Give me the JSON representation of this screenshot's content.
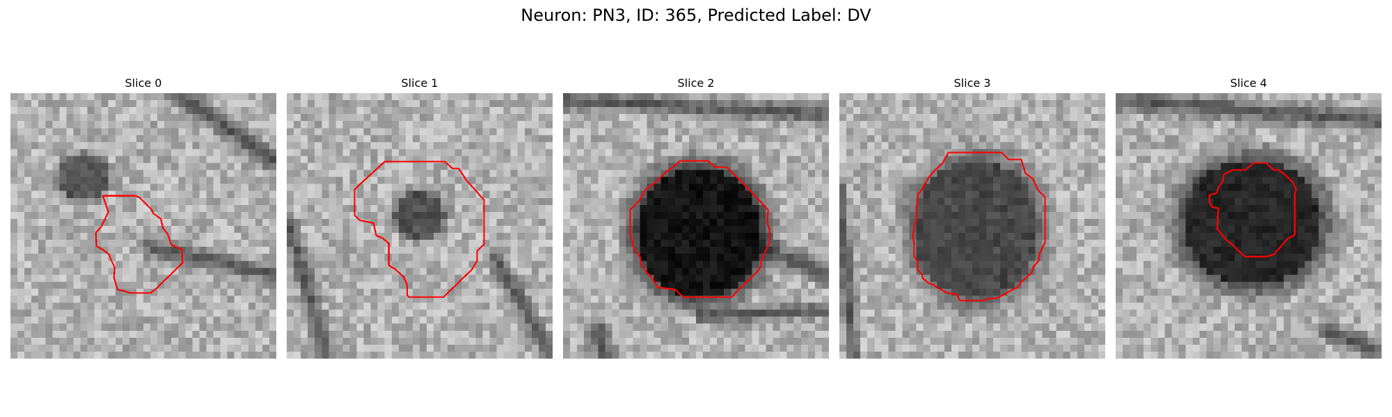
{
  "figure": {
    "title": "Neuron: PN3, ID: 365, Predicted Label: DV"
  },
  "panels": [
    {
      "title": "Slice 0",
      "image": "grayscale microscopy slice",
      "contour_color": "#ff0000",
      "blob": {
        "cx": 10.5,
        "cy": 12.0,
        "rx": 3.6,
        "ry": 3.1,
        "dark": 0.55
      },
      "streaks": [
        {
          "x1": 24,
          "y1": 0,
          "x2": 38,
          "y2": 10,
          "w": 2.2
        },
        {
          "x1": 20,
          "y1": 22,
          "x2": 38,
          "y2": 26,
          "w": 2.0
        }
      ]
    },
    {
      "title": "Slice 1",
      "image": "grayscale microscopy slice",
      "contour_color": "#ff0000",
      "blob": {
        "cx": 19.0,
        "cy": 17.5,
        "rx": 3.6,
        "ry": 3.3,
        "dark": 0.6
      },
      "streaks": [
        {
          "x1": 0,
          "y1": 18,
          "x2": 6,
          "y2": 38,
          "w": 1.8
        },
        {
          "x1": 30,
          "y1": 24,
          "x2": 38,
          "y2": 38,
          "w": 1.8
        }
      ]
    },
    {
      "title": "Slice 2",
      "image": "grayscale microscopy slice",
      "contour_color": "#ff0000",
      "blob": {
        "cx": 19.5,
        "cy": 20.0,
        "rx": 9.0,
        "ry": 9.3,
        "dark": 0.97
      },
      "streaks": [
        {
          "x1": 0,
          "y1": 1,
          "x2": 38,
          "y2": 3,
          "w": 2.0
        },
        {
          "x1": 28,
          "y1": 22,
          "x2": 38,
          "y2": 26,
          "w": 2.2
        },
        {
          "x1": 20,
          "y1": 32,
          "x2": 38,
          "y2": 31,
          "w": 1.6
        },
        {
          "x1": 5,
          "y1": 34,
          "x2": 6,
          "y2": 38,
          "w": 2.5
        }
      ]
    },
    {
      "title": "Slice 3",
      "image": "grayscale microscopy slice",
      "contour_color": "#ff0000",
      "blob": {
        "cx": 19.5,
        "cy": 19.5,
        "rx": 9.0,
        "ry": 10.0,
        "dark": 0.65
      },
      "streaks": [
        {
          "x1": 0,
          "y1": 14,
          "x2": 2,
          "y2": 38,
          "w": 1.6
        }
      ]
    },
    {
      "title": "Slice 4",
      "image": "grayscale microscopy slice",
      "contour_color": "#ff0000",
      "blob": {
        "cx": 19.5,
        "cy": 18.5,
        "rx": 10.0,
        "ry": 9.0,
        "dark": 0.85
      },
      "streaks": [
        {
          "x1": 0,
          "y1": 1,
          "x2": 38,
          "y2": 4,
          "w": 2.2
        },
        {
          "x1": 30,
          "y1": 34,
          "x2": 38,
          "y2": 37,
          "w": 2.0
        }
      ]
    }
  ]
}
